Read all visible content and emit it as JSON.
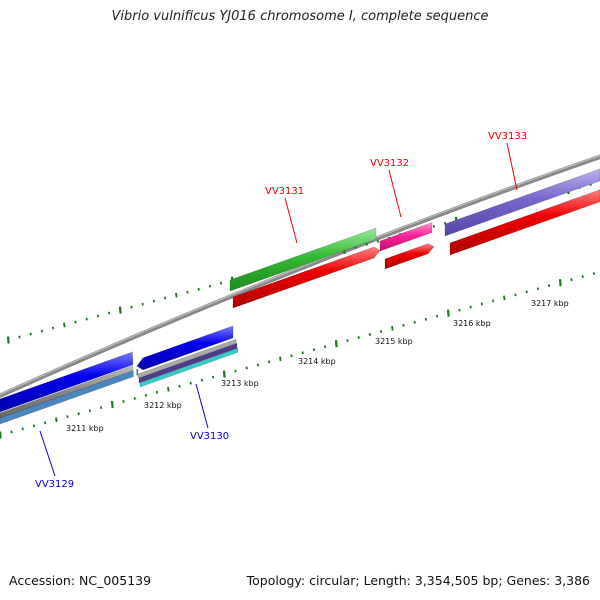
{
  "title": "Vibrio vulnificus YJ016 chromosome I, complete sequence",
  "footer": {
    "accession": "Accession: NC_005139",
    "topology": "Topology: circular; Length: 3,354,505 bp; Genes: 3,386"
  },
  "tick_labels": [
    "3211 kbp",
    "3212 kbp",
    "3213 kbp",
    "3214 kbp",
    "3215 kbp",
    "3216 kbp",
    "3217 kbp"
  ],
  "genes": [
    {
      "name": "VV3129",
      "strand": "reverse",
      "color": "#0000cc"
    },
    {
      "name": "VV3130",
      "strand": "reverse",
      "color": "#0000cc"
    },
    {
      "name": "VV3131",
      "strand": "forward",
      "color": "#ee0000"
    },
    {
      "name": "VV3132",
      "strand": "forward",
      "color": "#ee0000"
    },
    {
      "name": "VV3133",
      "strand": "forward",
      "color": "#ee0000"
    }
  ],
  "colors": {
    "backbone": "#888888",
    "ticks": "#1a7a1a",
    "forward_cds": "#ee0000",
    "reverse_cds": "#0000ee",
    "gene_green": "#33bb33",
    "gene_pink": "#ff2299",
    "gene_purple": "#7766cc",
    "gene_steel": "#4a86c0",
    "gene_cyan": "#33cccc"
  }
}
